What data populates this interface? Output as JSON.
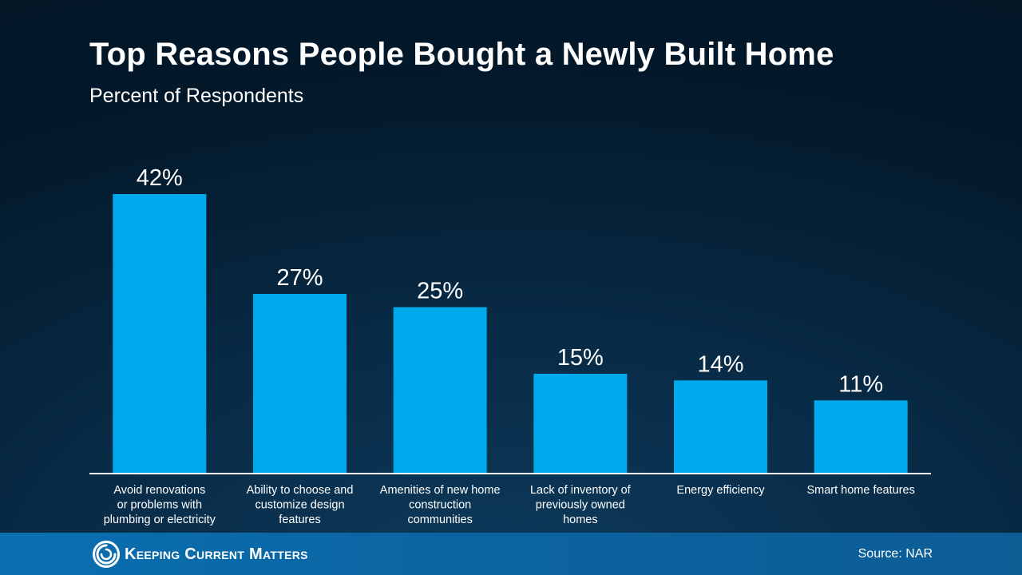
{
  "header": {
    "title": "Top Reasons People Bought a Newly Built Home",
    "subtitle": "Percent of Respondents"
  },
  "chart_data": {
    "type": "bar",
    "title": "Top Reasons People Bought a Newly Built Home",
    "subtitle": "Percent of Respondents",
    "ylabel": "Percent of Respondents",
    "categories": [
      [
        "Avoid renovations",
        "or problems with",
        "plumbing or electricity"
      ],
      [
        "Ability to choose and",
        "customize design",
        "features"
      ],
      [
        "Amenities of new home",
        "construction",
        "communities"
      ],
      [
        "Lack of inventory of",
        "previously owned",
        "homes"
      ],
      [
        "Energy efficiency"
      ],
      [
        "Smart home features"
      ]
    ],
    "values": [
      42,
      27,
      25,
      15,
      14,
      11
    ],
    "data_labels": [
      "42%",
      "27%",
      "25%",
      "15%",
      "14%",
      "11%"
    ],
    "ylim": [
      0,
      42
    ],
    "grid": false,
    "bar_color": "#00a8ec"
  },
  "footer": {
    "brand": "Keeping Current Matters",
    "source": "Source: NAR",
    "color": "#0a6fb0"
  }
}
